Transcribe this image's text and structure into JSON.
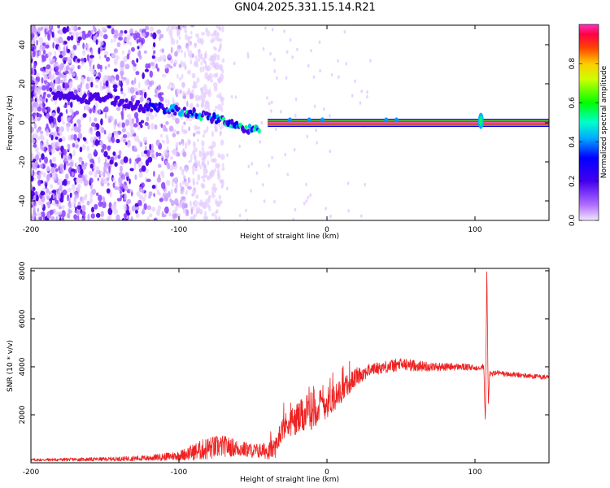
{
  "figure_title": "GN04.2025.331.15.14.R21",
  "chart_data": [
    {
      "type": "heatmap",
      "title": "GN04.2025.331.15.14.R21",
      "xlabel": "Height of straight line (km)",
      "ylabel": "Frequency (Hz)",
      "xlim": [
        -200,
        150
      ],
      "ylim": [
        -50,
        50
      ],
      "xticks": [
        -200,
        -100,
        0,
        100
      ],
      "yticks": [
        -40,
        -20,
        0,
        20,
        40
      ],
      "colorbar": {
        "label": "Normalized spectral amplitude",
        "range": [
          0,
          1
        ],
        "ticks": [
          0.0,
          0.2,
          0.4,
          0.6,
          0.8
        ]
      },
      "ridge": {
        "x": [
          -185,
          -170,
          -160,
          -150,
          -140,
          -130,
          -120,
          -110,
          -100,
          -90,
          -80,
          -70,
          -60,
          -50,
          -45,
          -40,
          -30,
          -20,
          -10,
          0,
          10,
          50,
          100,
          105,
          110,
          150
        ],
        "y": [
          14,
          13,
          12,
          13,
          11,
          9,
          8,
          7,
          6,
          5,
          3,
          1,
          -2,
          -4,
          -2,
          -1,
          -1,
          -1,
          0,
          0,
          0,
          0,
          0,
          2,
          0,
          0
        ]
      }
    },
    {
      "type": "line",
      "xlabel": "Height of straight line (km)",
      "ylabel": "SNR (10 * v/v)",
      "xlim": [
        -200,
        150
      ],
      "ylim": [
        0,
        8100
      ],
      "xticks": [
        -200,
        -100,
        0,
        100
      ],
      "yticks": [
        2000,
        4000,
        6000,
        8000
      ],
      "color": "#ee2222",
      "trend": {
        "x": [
          -200,
          -150,
          -120,
          -100,
          -90,
          -80,
          -70,
          -60,
          -50,
          -40,
          -35,
          -30,
          -20,
          -10,
          0,
          10,
          20,
          30,
          40,
          50,
          60,
          70,
          80,
          90,
          100,
          104,
          106,
          107,
          108,
          109,
          110,
          115,
          120,
          130,
          140,
          150
        ],
        "y": [
          120,
          150,
          200,
          300,
          450,
          600,
          700,
          600,
          500,
          500,
          600,
          1500,
          1800,
          2200,
          2500,
          3000,
          3600,
          3900,
          4000,
          4100,
          4050,
          4000,
          4000,
          4000,
          3950,
          4000,
          4000,
          1500,
          8100,
          2500,
          3700,
          3750,
          3700,
          3650,
          3600,
          3550
        ]
      },
      "noise": {
        "x": [
          -200,
          -150,
          -120,
          -100,
          -90,
          -80,
          -70,
          -60,
          -50,
          -40,
          -30,
          -20,
          -10,
          0,
          10,
          30,
          50,
          60,
          80,
          100,
          110,
          150
        ],
        "amplitude": [
          60,
          80,
          120,
          200,
          350,
          500,
          450,
          350,
          300,
          350,
          500,
          700,
          800,
          650,
          500,
          250,
          280,
          230,
          160,
          130,
          120,
          100
        ]
      }
    }
  ]
}
